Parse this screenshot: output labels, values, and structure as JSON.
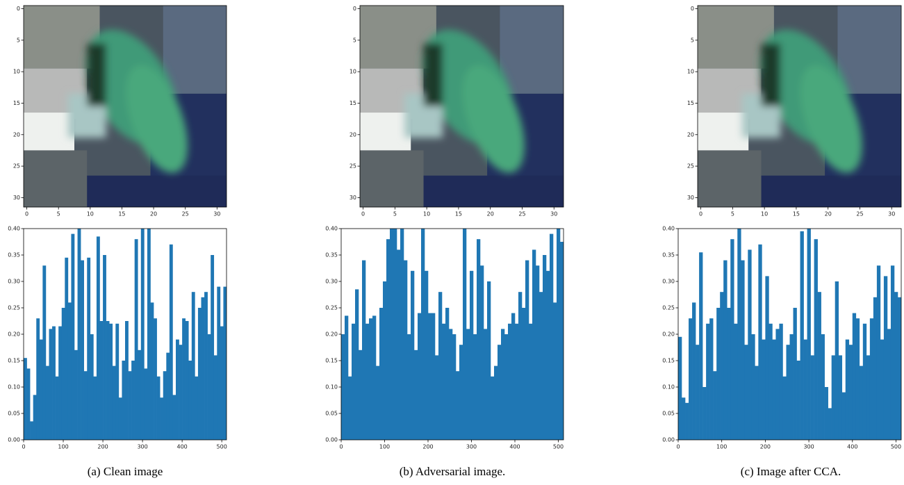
{
  "chart_data": [
    {
      "type": "image",
      "xlim": [
        -0.5,
        31.5
      ],
      "ylim": [
        31.5,
        -0.5
      ],
      "xticks": [
        0,
        5,
        10,
        15,
        20,
        25,
        30
      ],
      "yticks": [
        0,
        5,
        10,
        15,
        20,
        25,
        30
      ]
    },
    {
      "type": "histogram",
      "color": "#1f77b4",
      "caption": "(a) Clean image",
      "xlim": [
        0,
        512
      ],
      "ylim": [
        0,
        0.4
      ],
      "xticks": [
        0,
        100,
        200,
        300,
        400,
        500
      ],
      "yticks": [
        {
          "value": 0,
          "label": "0.00"
        },
        0.05,
        {
          "value": 0.1,
          "label": "0.10"
        },
        0.15,
        {
          "value": 0.2,
          "label": "0.20"
        },
        0.25,
        {
          "value": 0.3,
          "label": "0.30"
        },
        0.35,
        {
          "value": 0.4,
          "label": "0.40"
        }
      ],
      "bins": [
        0,
        8,
        16,
        24,
        32,
        40,
        48,
        56,
        64,
        72,
        80,
        88,
        96,
        104,
        112,
        120,
        128,
        136,
        144,
        152,
        160,
        168,
        176,
        184,
        192,
        200,
        208,
        216,
        224,
        232,
        240,
        248,
        256,
        264,
        272,
        280,
        288,
        296,
        304,
        312,
        320,
        328,
        336,
        344,
        352,
        360,
        368,
        376,
        384,
        392,
        400,
        408,
        416,
        424,
        432,
        440,
        448,
        456,
        464,
        472,
        480,
        488,
        496,
        504,
        512
      ],
      "values": [
        0.155,
        0.135,
        0.035,
        0.085,
        0.23,
        0.19,
        0.33,
        0.14,
        0.21,
        0.215,
        0.12,
        0.215,
        0.25,
        0.345,
        0.26,
        0.39,
        0.17,
        0.4,
        0.34,
        0.13,
        0.345,
        0.2,
        0.12,
        0.385,
        0.225,
        0.35,
        0.225,
        0.22,
        0.14,
        0.22,
        0.08,
        0.15,
        0.225,
        0.13,
        0.15,
        0.38,
        0.17,
        0.4,
        0.135,
        0.4,
        0.26,
        0.23,
        0.12,
        0.08,
        0.13,
        0.165,
        0.37,
        0.085,
        0.19,
        0.18,
        0.23,
        0.225,
        0.15,
        0.28,
        0.12,
        0.25,
        0.27,
        0.28,
        0.2,
        0.35,
        0.16,
        0.29,
        0.215,
        0.29
      ]
    },
    {
      "type": "image",
      "xlim": [
        -0.5,
        31.5
      ],
      "ylim": [
        31.5,
        -0.5
      ],
      "xticks": [
        0,
        5,
        10,
        15,
        20,
        25,
        30
      ],
      "yticks": [
        0,
        5,
        10,
        15,
        20,
        25,
        30
      ]
    },
    {
      "type": "histogram",
      "color": "#1f77b4",
      "caption": "(b) Adversarial image.",
      "xlim": [
        0,
        512
      ],
      "ylim": [
        0,
        0.4
      ],
      "xticks": [
        0,
        100,
        200,
        300,
        400,
        500
      ],
      "yticks": [
        {
          "value": 0,
          "label": "0.00"
        },
        0.05,
        {
          "value": 0.1,
          "label": "0.10"
        },
        0.15,
        {
          "value": 0.2,
          "label": "0.20"
        },
        0.25,
        {
          "value": 0.3,
          "label": "0.30"
        },
        0.35,
        {
          "value": 0.4,
          "label": "0.40"
        }
      ],
      "bins": [
        0,
        8,
        16,
        24,
        32,
        40,
        48,
        56,
        64,
        72,
        80,
        88,
        96,
        104,
        112,
        120,
        128,
        136,
        144,
        152,
        160,
        168,
        176,
        184,
        192,
        200,
        208,
        216,
        224,
        232,
        240,
        248,
        256,
        264,
        272,
        280,
        288,
        296,
        304,
        312,
        320,
        328,
        336,
        344,
        352,
        360,
        368,
        376,
        384,
        392,
        400,
        408,
        416,
        424,
        432,
        440,
        448,
        456,
        464,
        472,
        480,
        488,
        496,
        504,
        512
      ],
      "values": [
        0.2,
        0.235,
        0.12,
        0.22,
        0.285,
        0.17,
        0.34,
        0.22,
        0.23,
        0.235,
        0.14,
        0.25,
        0.3,
        0.38,
        0.4,
        0.4,
        0.36,
        0.4,
        0.34,
        0.2,
        0.32,
        0.17,
        0.24,
        0.4,
        0.32,
        0.24,
        0.24,
        0.16,
        0.28,
        0.22,
        0.25,
        0.21,
        0.2,
        0.13,
        0.18,
        0.4,
        0.21,
        0.32,
        0.2,
        0.38,
        0.33,
        0.21,
        0.3,
        0.12,
        0.14,
        0.18,
        0.21,
        0.2,
        0.22,
        0.24,
        0.22,
        0.28,
        0.25,
        0.34,
        0.22,
        0.36,
        0.33,
        0.28,
        0.35,
        0.32,
        0.39,
        0.26,
        0.4,
        0.375
      ]
    },
    {
      "type": "image",
      "xlim": [
        -0.5,
        31.5
      ],
      "ylim": [
        31.5,
        -0.5
      ],
      "xticks": [
        0,
        5,
        10,
        15,
        20,
        25,
        30
      ],
      "yticks": [
        0,
        5,
        10,
        15,
        20,
        25,
        30
      ]
    },
    {
      "type": "histogram",
      "color": "#1f77b4",
      "caption": "(c) Image after CCA.",
      "xlim": [
        0,
        512
      ],
      "ylim": [
        0,
        0.4
      ],
      "xticks": [
        0,
        100,
        200,
        300,
        400,
        500
      ],
      "yticks": [
        {
          "value": 0,
          "label": "0.00"
        },
        0.05,
        {
          "value": 0.1,
          "label": "0.10"
        },
        0.15,
        {
          "value": 0.2,
          "label": "0.20"
        },
        0.25,
        {
          "value": 0.3,
          "label": "0.30"
        },
        0.35,
        {
          "value": 0.4,
          "label": "0.40"
        }
      ],
      "bins": [
        0,
        8,
        16,
        24,
        32,
        40,
        48,
        56,
        64,
        72,
        80,
        88,
        96,
        104,
        112,
        120,
        128,
        136,
        144,
        152,
        160,
        168,
        176,
        184,
        192,
        200,
        208,
        216,
        224,
        232,
        240,
        248,
        256,
        264,
        272,
        280,
        288,
        296,
        304,
        312,
        320,
        328,
        336,
        344,
        352,
        360,
        368,
        376,
        384,
        392,
        400,
        408,
        416,
        424,
        432,
        440,
        448,
        456,
        464,
        472,
        480,
        488,
        496,
        504,
        512
      ],
      "values": [
        0.195,
        0.08,
        0.07,
        0.23,
        0.26,
        0.18,
        0.355,
        0.1,
        0.22,
        0.23,
        0.13,
        0.25,
        0.28,
        0.34,
        0.25,
        0.38,
        0.22,
        0.4,
        0.34,
        0.18,
        0.36,
        0.2,
        0.14,
        0.37,
        0.19,
        0.31,
        0.22,
        0.19,
        0.21,
        0.22,
        0.12,
        0.18,
        0.2,
        0.25,
        0.15,
        0.395,
        0.19,
        0.4,
        0.16,
        0.38,
        0.28,
        0.2,
        0.1,
        0.06,
        0.16,
        0.3,
        0.16,
        0.09,
        0.19,
        0.18,
        0.24,
        0.23,
        0.14,
        0.22,
        0.16,
        0.23,
        0.27,
        0.33,
        0.19,
        0.31,
        0.21,
        0.33,
        0.28,
        0.27
      ]
    }
  ]
}
